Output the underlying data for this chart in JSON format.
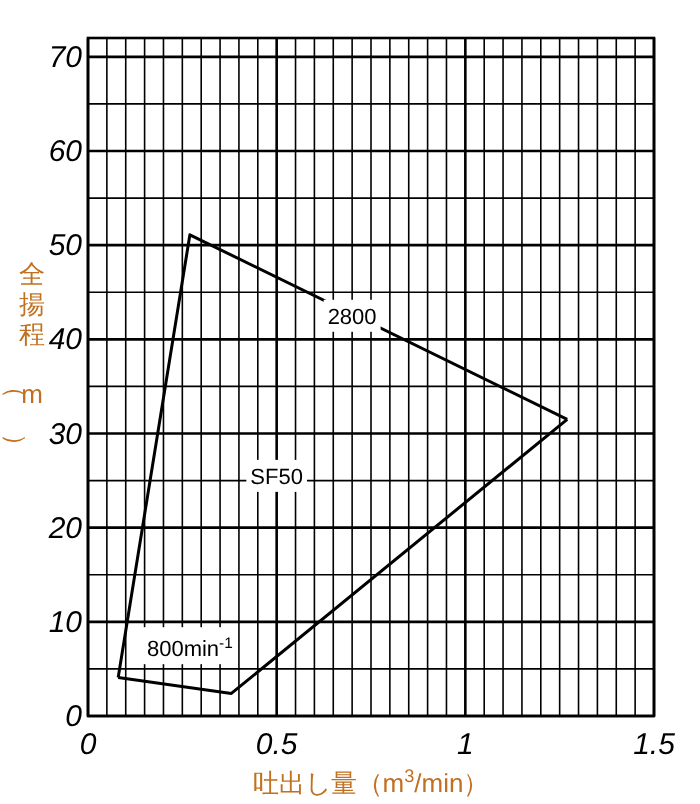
{
  "chart_data": {
    "type": "line",
    "xlabel": "吐出し量（m$^{3}$/min）",
    "ylabel": "全揚程（m）",
    "series": [
      {
        "color": "#000000",
        "x": [
          0.08,
          0.27,
          1.27
        ],
        "values": [
          4.1,
          51.1,
          31.5
        ]
      },
      {
        "color": "#000000",
        "x": [
          0.08,
          0.38,
          1.27
        ],
        "values": [
          4.1,
          2.4,
          31.5
        ]
      }
    ],
    "xlim": [
      0,
      1.5
    ],
    "ylim": [
      0,
      72
    ],
    "xticks": [
      0,
      {
        "value": 0.05,
        "label": null
      },
      {
        "value": 0.1,
        "label": null
      },
      {
        "value": 0.15,
        "label": null
      },
      {
        "value": 0.2,
        "label": null
      },
      {
        "value": 0.25,
        "label": null
      },
      {
        "value": 0.3,
        "label": null
      },
      {
        "value": 0.35,
        "label": null
      },
      {
        "value": 0.4,
        "label": null
      },
      {
        "value": 0.45,
        "label": null
      },
      0.5,
      {
        "value": 0.55,
        "label": null
      },
      {
        "value": 0.6,
        "label": null
      },
      {
        "value": 0.65,
        "label": null
      },
      {
        "value": 0.7,
        "label": null
      },
      {
        "value": 0.75,
        "label": null
      },
      {
        "value": 0.8,
        "label": null
      },
      {
        "value": 0.85,
        "label": null
      },
      {
        "value": 0.9,
        "label": null
      },
      {
        "value": 0.95,
        "label": null
      },
      1,
      {
        "value": 1.05,
        "label": null
      },
      {
        "value": 1.1,
        "label": null
      },
      {
        "value": 1.15,
        "label": null
      },
      {
        "value": 1.2,
        "label": null
      },
      {
        "value": 1.25,
        "label": null
      },
      {
        "value": 1.3,
        "label": null
      },
      {
        "value": 1.35,
        "label": null
      },
      {
        "value": 1.4,
        "label": null
      },
      {
        "value": 1.45,
        "label": null
      },
      1.5
    ],
    "yticks": [
      0,
      {
        "value": 5,
        "label": null
      },
      10,
      {
        "value": 15,
        "label": null
      },
      20,
      {
        "value": 25,
        "label": null
      },
      30,
      {
        "value": 35,
        "label": null
      },
      40,
      {
        "value": 45,
        "label": null
      },
      50,
      {
        "value": 55,
        "label": null
      },
      60,
      {
        "value": 65,
        "label": null
      },
      70
    ],
    "grid": true,
    "marker": "none",
    "line_style": "solid",
    "annotations": [
      "2800",
      "SF50",
      "800min$^{-1}$"
    ]
  }
}
